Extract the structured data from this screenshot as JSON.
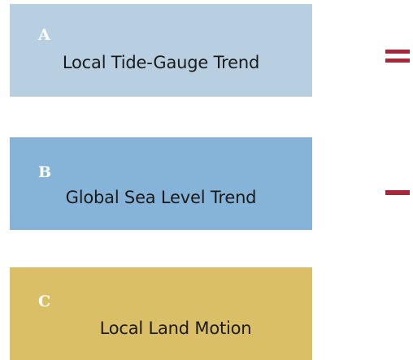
{
  "diagram": {
    "boxes": [
      {
        "letter": "A",
        "label": "Local Tide-Gauge Trend",
        "color": "#b8cfe1"
      },
      {
        "letter": "B",
        "label": "Global Sea Level Trend",
        "color": "#86b4d8"
      },
      {
        "letter": "C",
        "label": "Local Land Motion",
        "color": "#dbbf66"
      }
    ],
    "operators": [
      {
        "symbol": "equals-sign",
        "between": [
          "A",
          "B"
        ]
      },
      {
        "symbol": "minus-sign",
        "between": [
          "B",
          "C"
        ]
      }
    ],
    "operator_color": "#a8283a"
  }
}
